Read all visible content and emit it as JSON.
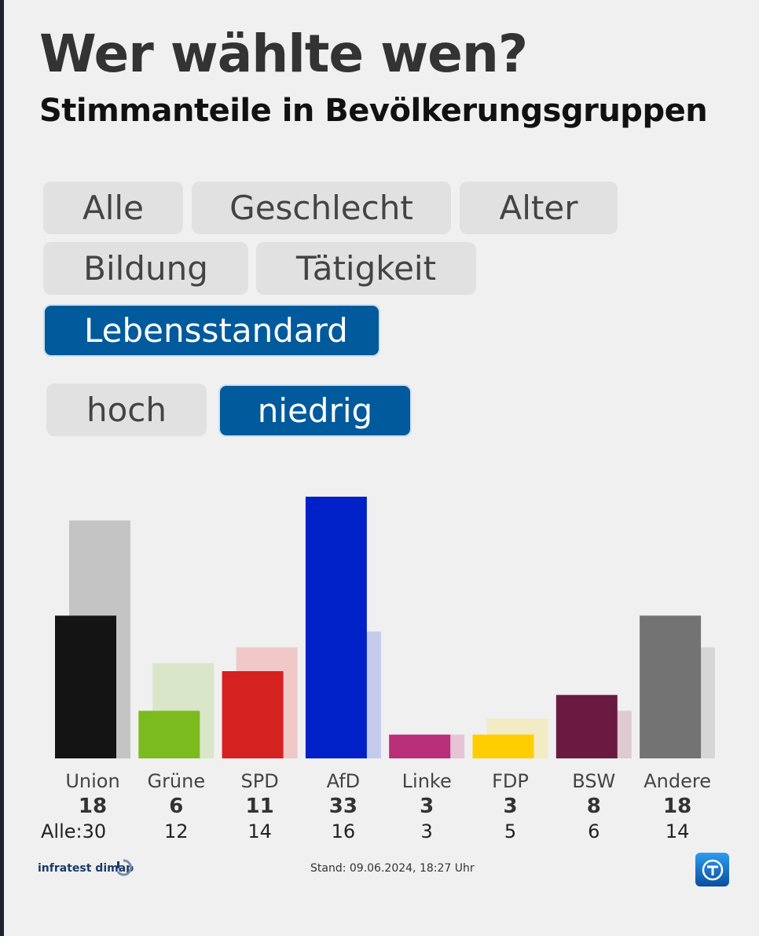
{
  "header": {
    "title": "Wer wählte wen?",
    "subtitle": "Stimmanteile in Bevölkerungsgruppen"
  },
  "filters": {
    "categories": [
      "Alle",
      "Geschlecht",
      "Alter",
      "Bildung",
      "Tätigkeit",
      "Lebensstandard"
    ],
    "active_category": "Lebensstandard",
    "sub_options": [
      "hoch",
      "niedrig"
    ],
    "active_sub_option": "niedrig"
  },
  "chart_data": {
    "type": "bar",
    "categories": [
      "Union",
      "Grüne",
      "SPD",
      "AfD",
      "Linke",
      "FDP",
      "BSW",
      "Andere"
    ],
    "series": [
      {
        "name": "niedrig",
        "values": [
          18,
          6,
          11,
          33,
          3,
          3,
          8,
          18
        ]
      },
      {
        "name": "Alle",
        "values": [
          30,
          12,
          14,
          16,
          3,
          5,
          6,
          14
        ]
      }
    ],
    "alle_label": "Alle:",
    "ylim": [
      0,
      33
    ],
    "colors": [
      "#141414",
      "#7bbb1e",
      "#d62121",
      "#0021c8",
      "#b92e79",
      "#ffcd00",
      "#6a1a40",
      "#737373"
    ],
    "background_colors": [
      "#c4c4c4",
      "#d9e6c8",
      "#f0c8c8",
      "#c4cbec",
      "#e6c4d6",
      "#f3ebc4",
      "#dfcad2",
      "#d6d6d6"
    ]
  },
  "footer": {
    "source": "infratest dimap",
    "stand": "Stand: 09.06.2024, 18:27 Uhr"
  }
}
